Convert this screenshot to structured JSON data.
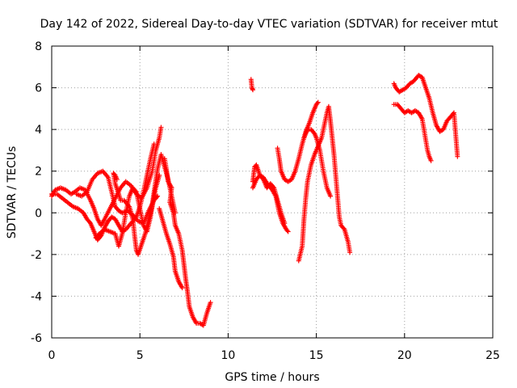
{
  "chart_data": {
    "type": "scatter",
    "title": "Day 142 of 2022, Sidereal Day-to-day VTEC variation (SDTVAR) for receiver mtut",
    "xlabel": "GPS time / hours",
    "ylabel": "SDTVAR / TECUs",
    "xlim": [
      0,
      25
    ],
    "ylim": [
      -6,
      8
    ],
    "x_ticks": [
      0,
      5,
      10,
      15,
      20,
      25
    ],
    "y_ticks": [
      -6,
      -4,
      -2,
      0,
      2,
      4,
      6,
      8
    ],
    "x_tick_labels": [
      "0",
      "5",
      "10",
      "15",
      "20",
      "25"
    ],
    "y_tick_labels": [
      "-6",
      "-4",
      "-2",
      "0",
      "2",
      "4",
      "6",
      "8"
    ],
    "grid": true,
    "marker": "+",
    "color": "#ff0000",
    "series": [
      {
        "segments": [
          [
            [
              0.0,
              0.8
            ],
            [
              0.2,
              1.1
            ],
            [
              0.5,
              1.2
            ],
            [
              0.8,
              1.1
            ],
            [
              1.1,
              0.9
            ],
            [
              1.3,
              1.0
            ],
            [
              1.6,
              1.2
            ],
            [
              1.9,
              1.1
            ],
            [
              2.2,
              0.6
            ],
            [
              2.4,
              0.2
            ],
            [
              2.6,
              -0.3
            ],
            [
              2.8,
              -0.6
            ],
            [
              3.0,
              -0.3
            ],
            [
              3.3,
              0.2
            ],
            [
              3.6,
              0.7
            ],
            [
              3.9,
              1.2
            ],
            [
              4.2,
              1.5
            ],
            [
              4.5,
              1.3
            ],
            [
              4.8,
              0.9
            ],
            [
              5.1,
              0.7
            ],
            [
              5.4,
              1.2
            ],
            [
              5.7,
              2.0
            ],
            [
              5.9,
              3.0
            ],
            [
              6.1,
              3.6
            ],
            [
              6.2,
              4.1
            ]
          ],
          [
            [
              0.0,
              0.9
            ],
            [
              0.3,
              0.9
            ],
            [
              0.6,
              0.7
            ],
            [
              0.9,
              0.5
            ],
            [
              1.2,
              0.3
            ],
            [
              1.5,
              0.2
            ],
            [
              1.8,
              0.0
            ],
            [
              2.0,
              -0.3
            ],
            [
              2.2,
              -0.5
            ],
            [
              2.4,
              -0.9
            ],
            [
              2.6,
              -1.3
            ],
            [
              2.8,
              -1.1
            ],
            [
              3.0,
              -0.7
            ],
            [
              3.2,
              -0.4
            ],
            [
              3.4,
              -0.2
            ],
            [
              3.6,
              -0.3
            ],
            [
              3.8,
              -0.6
            ],
            [
              4.0,
              -0.9
            ],
            [
              4.2,
              -0.8
            ],
            [
              4.5,
              -0.5
            ],
            [
              4.8,
              -0.2
            ],
            [
              5.0,
              0.3
            ],
            [
              5.2,
              1.0
            ],
            [
              5.4,
              1.8
            ],
            [
              5.6,
              2.6
            ],
            [
              5.8,
              3.3
            ]
          ],
          [
            [
              1.4,
              0.9
            ],
            [
              1.7,
              0.8
            ],
            [
              2.0,
              1.0
            ],
            [
              2.3,
              1.6
            ],
            [
              2.6,
              1.9
            ],
            [
              2.9,
              2.0
            ],
            [
              3.2,
              1.7
            ],
            [
              3.4,
              1.0
            ],
            [
              3.6,
              0.3
            ],
            [
              3.8,
              0.1
            ],
            [
              4.0,
              0.0
            ],
            [
              4.3,
              0.1
            ],
            [
              4.6,
              -0.1
            ],
            [
              4.9,
              -0.4
            ],
            [
              5.2,
              -0.5
            ],
            [
              5.5,
              0.1
            ],
            [
              5.8,
              0.6
            ],
            [
              6.0,
              0.8
            ]
          ],
          [
            [
              2.5,
              -1.2
            ],
            [
              2.7,
              -1.0
            ],
            [
              3.0,
              -0.8
            ],
            [
              3.3,
              -0.9
            ],
            [
              3.6,
              -1.0
            ],
            [
              3.8,
              -1.6
            ],
            [
              4.0,
              -1.0
            ],
            [
              4.2,
              0.0
            ],
            [
              4.4,
              0.8
            ],
            [
              4.6,
              1.2
            ],
            [
              4.8,
              1.0
            ],
            [
              5.0,
              0.2
            ],
            [
              5.2,
              -0.6
            ],
            [
              5.4,
              -0.9
            ],
            [
              5.6,
              -0.2
            ],
            [
              5.8,
              1.0
            ],
            [
              6.0,
              2.1
            ],
            [
              6.2,
              2.8
            ],
            [
              6.4,
              2.2
            ],
            [
              6.6,
              1.6
            ],
            [
              6.8,
              0.8
            ],
            [
              7.0,
              0.0
            ]
          ],
          [
            [
              3.7,
              1.6
            ],
            [
              3.6,
              1.8
            ],
            [
              3.5,
              1.9
            ],
            [
              3.6,
              1.4
            ],
            [
              3.8,
              0.9
            ],
            [
              3.9,
              0.6
            ],
            [
              4.1,
              0.6
            ],
            [
              4.4,
              0.3
            ],
            [
              4.6,
              -0.3
            ],
            [
              4.7,
              -1.1
            ],
            [
              4.8,
              -1.8
            ],
            [
              4.9,
              -2.0
            ],
            [
              5.1,
              -1.5
            ],
            [
              5.3,
              -1.0
            ],
            [
              5.5,
              -0.3
            ],
            [
              5.7,
              0.3
            ],
            [
              5.9,
              1.2
            ],
            [
              6.1,
              1.8
            ]
          ],
          [
            [
              6.4,
              2.6
            ],
            [
              6.5,
              2.1
            ],
            [
              6.6,
              1.5
            ],
            [
              6.8,
              1.2
            ],
            [
              6.7,
              0.5
            ],
            [
              6.9,
              0.0
            ],
            [
              7.0,
              -0.6
            ],
            [
              7.2,
              -1.0
            ],
            [
              7.4,
              -1.8
            ],
            [
              7.5,
              -2.5
            ],
            [
              7.6,
              -3.2
            ],
            [
              7.7,
              -3.8
            ],
            [
              7.8,
              -4.5
            ],
            [
              8.0,
              -5.0
            ],
            [
              8.2,
              -5.3
            ],
            [
              8.4,
              -5.3
            ],
            [
              8.6,
              -5.4
            ],
            [
              8.8,
              -4.8
            ],
            [
              9.0,
              -4.3
            ]
          ],
          [
            [
              6.1,
              0.2
            ],
            [
              6.3,
              -0.4
            ],
            [
              6.5,
              -1.0
            ],
            [
              6.7,
              -1.5
            ],
            [
              6.9,
              -2.1
            ],
            [
              7.0,
              -2.8
            ],
            [
              7.2,
              -3.3
            ],
            [
              7.4,
              -3.6
            ]
          ],
          [
            [
              11.3,
              6.4
            ],
            [
              11.35,
              6.0
            ],
            [
              11.4,
              5.9
            ]
          ],
          [
            [
              11.4,
              1.5
            ],
            [
              11.5,
              2.2
            ],
            [
              11.6,
              2.3
            ],
            [
              11.8,
              1.8
            ],
            [
              12.0,
              1.7
            ],
            [
              12.3,
              1.3
            ],
            [
              12.5,
              1.1
            ],
            [
              12.7,
              0.8
            ],
            [
              12.9,
              0.0
            ],
            [
              13.1,
              -0.5
            ],
            [
              13.3,
              -0.8
            ],
            [
              13.4,
              -0.9
            ]
          ],
          [
            [
              11.4,
              1.2
            ],
            [
              11.6,
              1.6
            ],
            [
              11.8,
              1.8
            ],
            [
              12.0,
              1.6
            ],
            [
              12.2,
              1.2
            ],
            [
              12.4,
              1.4
            ],
            [
              12.6,
              1.2
            ],
            [
              12.8,
              0.6
            ],
            [
              13.0,
              0.0
            ],
            [
              13.2,
              -0.5
            ]
          ],
          [
            [
              12.8,
              3.1
            ],
            [
              12.9,
              2.6
            ],
            [
              13.0,
              2.0
            ],
            [
              13.2,
              1.6
            ],
            [
              13.4,
              1.5
            ],
            [
              13.6,
              1.6
            ],
            [
              13.8,
              2.0
            ],
            [
              14.0,
              2.6
            ],
            [
              14.2,
              3.3
            ],
            [
              14.4,
              3.9
            ],
            [
              14.6,
              4.3
            ],
            [
              14.8,
              4.8
            ],
            [
              15.0,
              5.2
            ],
            [
              15.1,
              5.3
            ]
          ],
          [
            [
              14.0,
              -2.3
            ],
            [
              14.2,
              -1.6
            ],
            [
              14.3,
              -0.3
            ],
            [
              14.4,
              0.7
            ],
            [
              14.5,
              1.5
            ],
            [
              14.7,
              2.3
            ],
            [
              14.9,
              2.8
            ],
            [
              15.1,
              3.2
            ],
            [
              15.3,
              3.6
            ],
            [
              15.5,
              4.4
            ],
            [
              15.6,
              4.8
            ],
            [
              15.7,
              5.1
            ],
            [
              15.8,
              4.4
            ],
            [
              15.9,
              3.6
            ],
            [
              16.0,
              2.8
            ],
            [
              16.1,
              1.8
            ],
            [
              16.2,
              0.8
            ],
            [
              16.3,
              -0.2
            ],
            [
              16.4,
              -0.6
            ],
            [
              16.6,
              -0.8
            ],
            [
              16.8,
              -1.4
            ],
            [
              16.9,
              -1.9
            ]
          ],
          [
            [
              14.3,
              3.6
            ],
            [
              14.5,
              4.0
            ],
            [
              14.7,
              4.0
            ],
            [
              14.9,
              3.8
            ],
            [
              15.0,
              3.6
            ],
            [
              15.2,
              3.0
            ],
            [
              15.4,
              2.0
            ],
            [
              15.6,
              1.2
            ],
            [
              15.8,
              0.8
            ]
          ],
          [
            [
              19.4,
              6.2
            ],
            [
              19.5,
              6.0
            ],
            [
              19.7,
              5.8
            ],
            [
              19.9,
              5.9
            ],
            [
              20.1,
              6.0
            ],
            [
              20.3,
              6.2
            ],
            [
              20.5,
              6.3
            ],
            [
              20.7,
              6.5
            ],
            [
              20.8,
              6.6
            ],
            [
              21.0,
              6.5
            ],
            [
              21.2,
              6.0
            ],
            [
              21.4,
              5.5
            ],
            [
              21.6,
              4.8
            ],
            [
              21.8,
              4.2
            ],
            [
              22.0,
              3.9
            ],
            [
              22.2,
              4.0
            ],
            [
              22.4,
              4.4
            ],
            [
              22.6,
              4.6
            ],
            [
              22.8,
              4.8
            ],
            [
              23.0,
              2.7
            ]
          ],
          [
            [
              19.4,
              5.2
            ],
            [
              19.6,
              5.2
            ],
            [
              19.8,
              5.0
            ],
            [
              20.0,
              4.8
            ],
            [
              20.2,
              4.9
            ],
            [
              20.4,
              4.8
            ],
            [
              20.6,
              4.9
            ],
            [
              20.8,
              4.8
            ],
            [
              21.0,
              4.5
            ],
            [
              21.1,
              4.0
            ],
            [
              21.2,
              3.5
            ],
            [
              21.3,
              3.0
            ],
            [
              21.4,
              2.7
            ],
            [
              21.5,
              2.5
            ]
          ]
        ]
      }
    ]
  }
}
